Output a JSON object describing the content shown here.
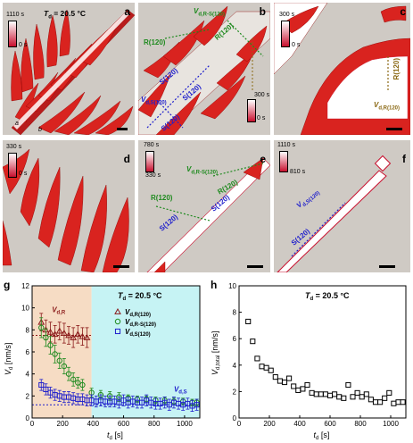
{
  "panels": {
    "a": {
      "label": "a",
      "title": "T_d = 20.5 °C",
      "title_main": "T",
      "title_sub": "d",
      "title_rest": " = 20.5 °C",
      "cbar_top": "1110 s",
      "cbar_bottom": "0 s",
      "axis_a": "a",
      "axis_b": "b"
    },
    "b": {
      "label": "b",
      "cbar_top": "300 s",
      "cbar_bottom": "0 s",
      "ann_vd_rs": "V",
      "ann_vd_rs_sub": "d,R-S(120)",
      "ann_r120_left": "R(120)",
      "ann_r120_right": "R(120)",
      "ann_s120_1": "S(120)",
      "ann_s120_2": "S(120)",
      "ann_s120_3": "S(120)",
      "ann_vds": "V",
      "ann_vds_sub": "d,S(120)"
    },
    "c": {
      "label": "c",
      "cbar_top": "300 s",
      "cbar_bottom": "0 s",
      "ann_r120": "R(120)",
      "ann_vdr": "V",
      "ann_vdr_sub": "d,R(120)"
    },
    "d": {
      "label": "d",
      "cbar_top": "330 s",
      "cbar_bottom": "0 s"
    },
    "e": {
      "label": "e",
      "cbar_top": "780 s",
      "cbar_bottom": "330 s",
      "ann_vd_rs": "V",
      "ann_vd_rs_sub": "d,R-S(120)",
      "ann_r120_left": "R(120)",
      "ann_r120_right": "R(120)",
      "ann_s120_left": "S(120)",
      "ann_s120_right": "S(120)"
    },
    "f": {
      "label": "f",
      "cbar_top": "1110 s",
      "cbar_bottom": "810 s",
      "ann_vds": "V",
      "ann_vds_sub": "d,S(120)",
      "ann_s120": "S(120)"
    }
  },
  "chart_data": [
    {
      "panel": "g",
      "type": "scatter",
      "title": "T_d = 20.5 °C",
      "title_main": "T",
      "title_sub": "d",
      "title_rest": " = 20.5 °C",
      "xlabel_main": "t",
      "xlabel_sub": "d",
      "xlabel_rest": " [s]",
      "ylabel_main": "V",
      "ylabel_sub": "d",
      "ylabel_rest": " [nm/s]",
      "xlim": [
        0,
        1100
      ],
      "ylim": [
        0,
        12
      ],
      "xticks": [
        0,
        200,
        400,
        600,
        800,
        1000
      ],
      "yticks": [
        0,
        2,
        4,
        6,
        8,
        10,
        12
      ],
      "region_labels": {
        "left": "V",
        "left_sub": "d,R",
        "right": "V",
        "right_sub": "d,S"
      },
      "legend": [
        {
          "main": "V",
          "sub": "d,R(120)",
          "color": "#8b1a1a",
          "marker": "triangle"
        },
        {
          "main": "V",
          "sub": "d,R-S(120)",
          "color": "#1f8a1f",
          "marker": "circle"
        },
        {
          "main": "V",
          "sub": "d,S(120)",
          "color": "#1f1fcc",
          "marker": "square"
        }
      ],
      "series": [
        {
          "name": "V_d,R(120)",
          "color": "#8b1a1a",
          "marker": "triangle",
          "x": [
            60,
            90,
            120,
            150,
            180,
            210,
            240,
            270,
            300,
            330,
            360
          ],
          "y": [
            8.7,
            8.0,
            7.8,
            7.6,
            7.9,
            7.7,
            7.5,
            7.3,
            7.6,
            7.4,
            7.3
          ],
          "err": [
            0.8,
            0.9,
            0.9,
            0.8,
            0.8,
            0.9,
            0.8,
            0.9,
            0.8,
            0.8,
            0.9
          ]
        },
        {
          "name": "V_d,R-S(120)",
          "color": "#1f8a1f",
          "marker": "circle",
          "x": [
            60,
            90,
            120,
            150,
            180,
            210,
            240,
            270,
            300,
            330,
            390,
            450,
            510,
            570,
            630,
            690,
            750,
            810,
            870,
            930,
            990,
            1050,
            1080
          ],
          "y": [
            8.2,
            7.3,
            6.6,
            5.8,
            5.2,
            4.7,
            4.0,
            3.5,
            3.2,
            3.0,
            2.3,
            2.1,
            2.0,
            1.9,
            1.8,
            1.7,
            1.7,
            1.6,
            1.6,
            1.5,
            1.5,
            1.4,
            1.4
          ],
          "err": [
            0.9,
            0.8,
            0.8,
            0.8,
            0.7,
            0.7,
            0.6,
            0.6,
            0.5,
            0.5,
            0.4,
            0.4,
            0.4,
            0.4,
            0.3,
            0.3,
            0.3,
            0.3,
            0.3,
            0.3,
            0.3,
            0.3,
            0.3
          ]
        },
        {
          "name": "V_d,S(120)",
          "color": "#1f1fcc",
          "marker": "square",
          "x": [
            60,
            90,
            120,
            150,
            180,
            210,
            240,
            270,
            300,
            330,
            360,
            390,
            420,
            450,
            480,
            510,
            540,
            570,
            600,
            630,
            660,
            690,
            720,
            750,
            780,
            810,
            840,
            870,
            900,
            930,
            960,
            990,
            1020,
            1050,
            1080
          ],
          "y": [
            3.0,
            2.6,
            2.3,
            2.1,
            2.0,
            1.9,
            1.9,
            1.8,
            1.7,
            1.7,
            1.6,
            1.6,
            1.5,
            1.6,
            1.5,
            1.5,
            1.5,
            1.4,
            1.6,
            1.4,
            1.5,
            1.4,
            1.4,
            1.6,
            1.4,
            1.3,
            1.3,
            1.4,
            1.2,
            1.4,
            1.3,
            1.2,
            1.3,
            1.1,
            1.2
          ],
          "err": [
            0.5,
            0.5,
            0.5,
            0.5,
            0.5,
            0.5,
            0.5,
            0.5,
            0.5,
            0.5,
            0.5,
            0.5,
            0.5,
            0.5,
            0.5,
            0.5,
            0.5,
            0.5,
            0.5,
            0.5,
            0.5,
            0.5,
            0.5,
            0.5,
            0.5,
            0.5,
            0.5,
            0.5,
            0.5,
            0.5,
            0.5,
            0.5,
            0.5,
            0.5,
            0.5
          ]
        }
      ]
    },
    {
      "panel": "h",
      "type": "scatter",
      "title": "T_d = 20.5 °C",
      "title_main": "T",
      "title_sub": "d",
      "title_rest": " = 20.5 °C",
      "xlabel_main": "t",
      "xlabel_sub": "d",
      "xlabel_rest": " [s]",
      "ylabel_main": "V",
      "ylabel_sub": "d,total",
      "ylabel_rest": " [nm/s]",
      "xlim": [
        0,
        1100
      ],
      "ylim": [
        0,
        10
      ],
      "xticks": [
        0,
        200,
        400,
        600,
        800,
        1000
      ],
      "yticks": [
        0,
        2,
        4,
        6,
        8,
        10
      ],
      "series": [
        {
          "name": "V_d,total",
          "color": "#000000",
          "marker": "square",
          "x": [
            60,
            90,
            120,
            150,
            180,
            210,
            240,
            270,
            300,
            330,
            360,
            390,
            420,
            450,
            480,
            510,
            540,
            570,
            600,
            630,
            660,
            690,
            720,
            750,
            780,
            810,
            840,
            870,
            900,
            930,
            960,
            990,
            1020,
            1050,
            1080
          ],
          "y": [
            7.3,
            5.8,
            4.5,
            3.9,
            3.8,
            3.6,
            3.1,
            2.8,
            2.7,
            3.0,
            2.4,
            2.1,
            2.2,
            2.5,
            1.9,
            1.8,
            1.8,
            1.8,
            1.7,
            1.8,
            1.6,
            1.5,
            2.5,
            1.6,
            1.9,
            1.6,
            1.8,
            1.4,
            1.2,
            1.2,
            1.5,
            1.9,
            1.1,
            1.2,
            1.2
          ]
        }
      ]
    }
  ]
}
